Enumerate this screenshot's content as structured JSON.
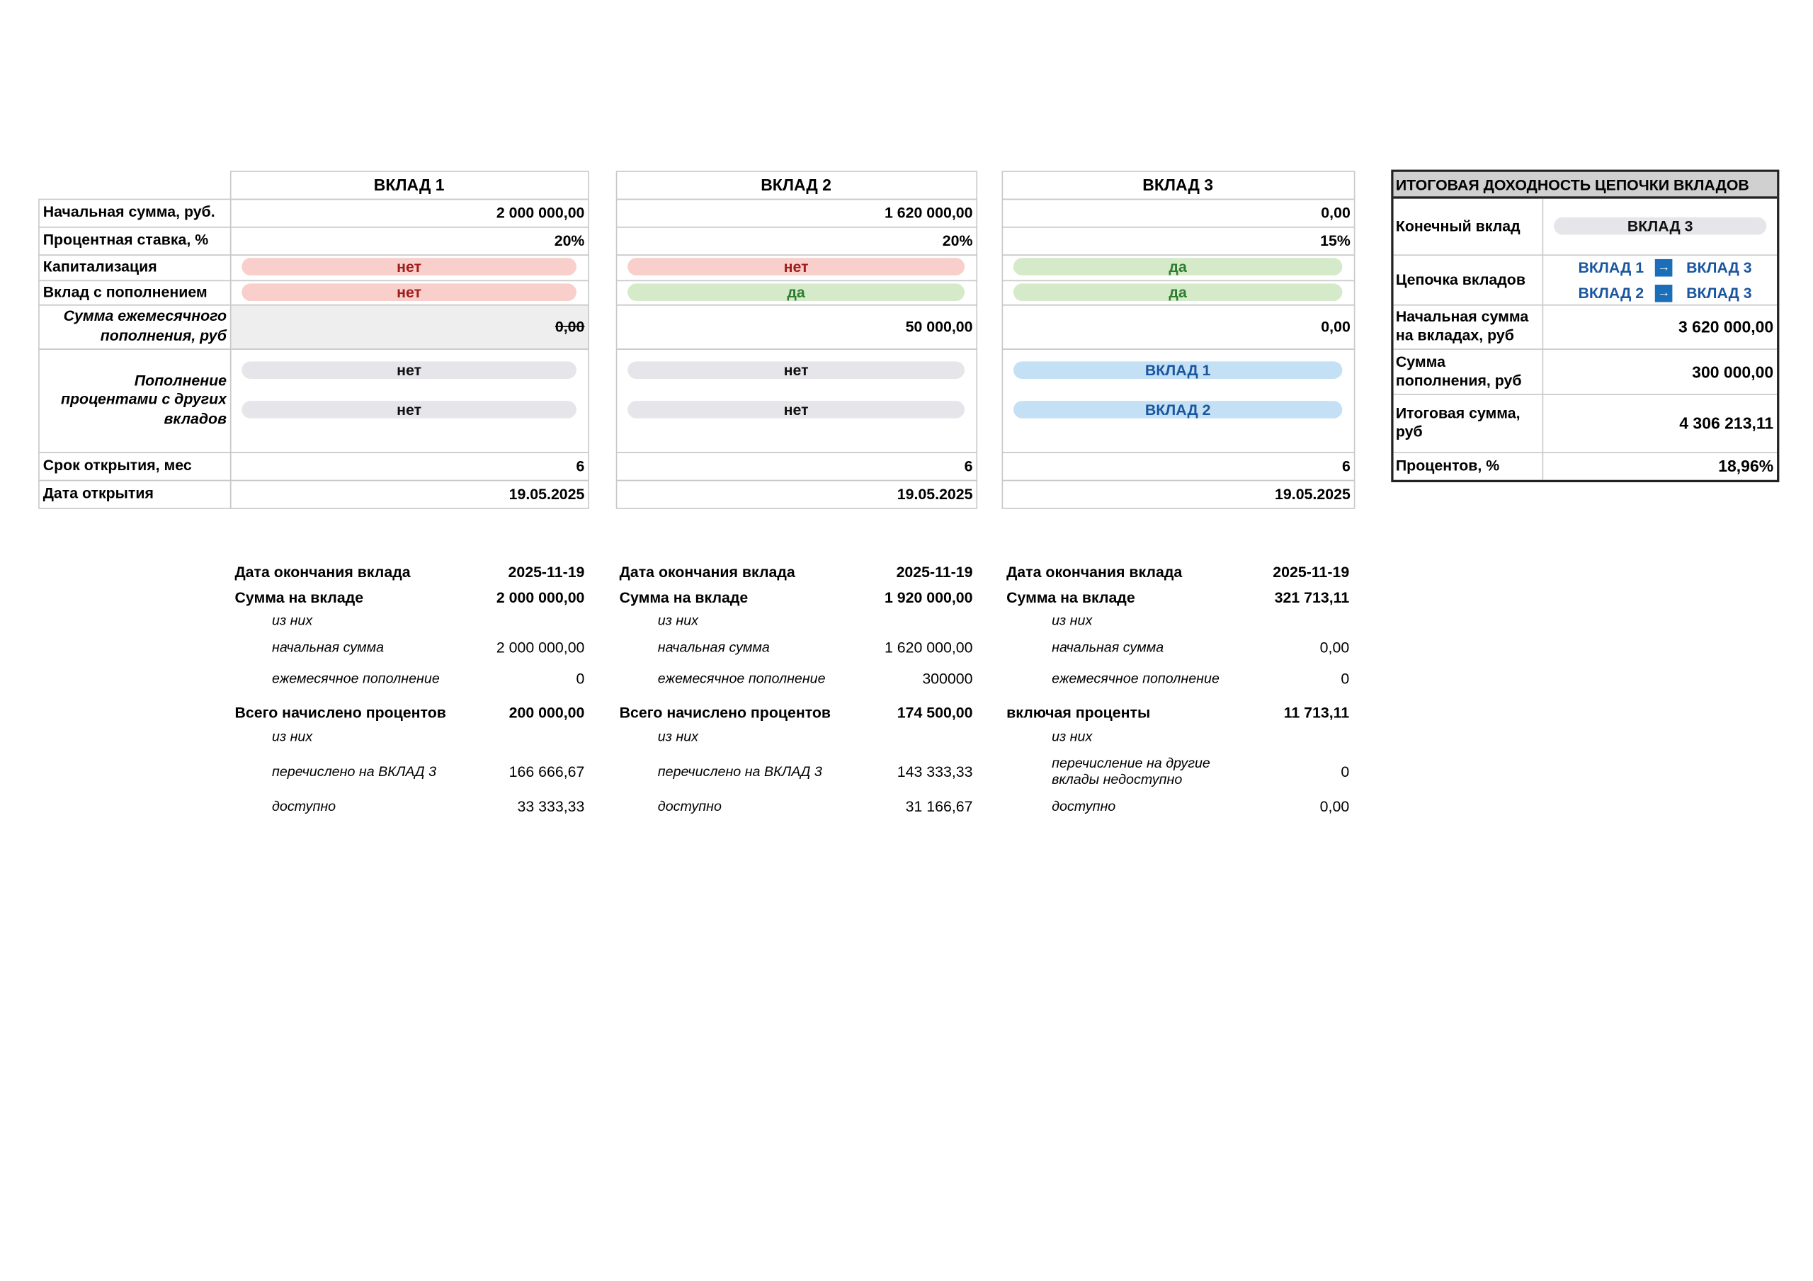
{
  "row_labels": [
    "Начальная сумма, руб.",
    "Процентная ставка, %",
    "Капитализация",
    "Вклад с пополнением",
    "Сумма ежемесячного пополнения, руб",
    "Пополнение процентами с других вкладов",
    "Срок открытия, мес",
    "Дата открытия"
  ],
  "deposits": [
    {
      "title": "ВКЛАД 1",
      "initial": "2 000 000,00",
      "rate": "20%",
      "capitalization": "нет",
      "replenishment": "нет",
      "monthly": "0,00",
      "from_other": [
        "нет",
        "нет"
      ],
      "term": "6",
      "open_date": "19.05.2025"
    },
    {
      "title": "ВКЛАД 2",
      "initial": "1 620 000,00",
      "rate": "20%",
      "capitalization": "нет",
      "replenishment": "да",
      "monthly": "50 000,00",
      "from_other": [
        "нет",
        "нет"
      ],
      "term": "6",
      "open_date": "19.05.2025"
    },
    {
      "title": "ВКЛАД 3",
      "initial": "0,00",
      "rate": "15%",
      "capitalization": "да",
      "replenishment": "да",
      "monthly": "0,00",
      "from_other": [
        "ВКЛАД 1",
        "ВКЛАД 2"
      ],
      "term": "6",
      "open_date": "19.05.2025"
    }
  ],
  "results": [
    [
      [
        "Дата окончания вклада",
        "2025-11-19"
      ],
      [
        "Сумма на вкладе",
        "2 000 000,00"
      ],
      [
        "из них"
      ],
      [
        "начальная сумма",
        "2 000 000,00"
      ],
      [
        "ежемесячное пополнение",
        "0"
      ],
      [
        "Всего начислено процентов",
        "200 000,00"
      ],
      [
        "из них"
      ],
      [
        "перечислено на ВКЛАД 3",
        "166 666,67"
      ],
      [
        "доступно",
        "33 333,33"
      ]
    ],
    [
      [
        "Дата окончания вклада",
        "2025-11-19"
      ],
      [
        "Сумма на вкладе",
        "1 920 000,00"
      ],
      [
        "из них"
      ],
      [
        "начальная сумма",
        "1 620 000,00"
      ],
      [
        "ежемесячное пополнение",
        "300000"
      ],
      [
        "Всего начислено процентов",
        "174 500,00"
      ],
      [
        "из них"
      ],
      [
        "перечислено на ВКЛАД 3",
        "143 333,33"
      ],
      [
        "доступно",
        "31 166,67"
      ]
    ],
    [
      [
        "Дата окончания вклада",
        "2025-11-19"
      ],
      [
        "Сумма на вкладе",
        "321 713,11"
      ],
      [
        "из них"
      ],
      [
        "начальная сумма",
        "0,00"
      ],
      [
        "ежемесячное пополнение",
        "0"
      ],
      [
        "включая проценты",
        "11 713,11"
      ],
      [
        "из них"
      ],
      [
        "перечисление на другие вклады недоступно",
        "0"
      ],
      [
        "доступно",
        "0,00"
      ]
    ]
  ],
  "summary": {
    "title": "ИТОГОВАЯ ДОХОДНОСТЬ ЦЕПОЧКИ ВКЛАДОВ",
    "rows": [
      {
        "label": "Конечный вклад",
        "value": "ВКЛАД 3"
      },
      {
        "label": "Цепочка вкладов",
        "chain": [
          [
            "ВКЛАД 1",
            "ВКЛАД 3"
          ],
          [
            "ВКЛАД 2",
            "ВКЛАД 3"
          ]
        ]
      },
      {
        "label": "Начальная сумма на вкладах, руб",
        "value": "3 620 000,00"
      },
      {
        "label": "Сумма пополнения, руб",
        "value": "300 000,00"
      },
      {
        "label": "Итоговая сумма, руб",
        "value": "4 306 213,11"
      },
      {
        "label": "Процентов, %",
        "value": "18,96%"
      }
    ]
  }
}
